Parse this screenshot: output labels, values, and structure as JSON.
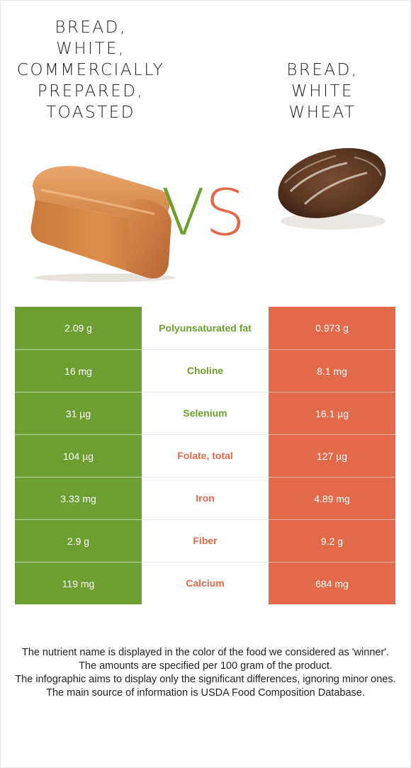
{
  "left_food": {
    "title": "Bread,\nwhite,\ncommercially\nprepared,\ntoasted",
    "image": "bread-loaf",
    "color": "#6e9e31"
  },
  "right_food": {
    "title": "Bread,\nwhite\nwheat",
    "image": "wheat-bread-loaf",
    "color": "#e2694a"
  },
  "vs": {
    "v": "V",
    "s": "S"
  },
  "rows": [
    {
      "left": "2.09 g",
      "nutrient": "Polyunsaturated fat",
      "right": "0.973 g",
      "winner": "left"
    },
    {
      "left": "16 mg",
      "nutrient": "Choline",
      "right": "8.1 mg",
      "winner": "left"
    },
    {
      "left": "31 µg",
      "nutrient": "Selenium",
      "right": "16.1 µg",
      "winner": "left"
    },
    {
      "left": "104 µg",
      "nutrient": "Folate, total",
      "right": "127 µg",
      "winner": "right"
    },
    {
      "left": "3.33 mg",
      "nutrient": "Iron",
      "right": "4.89 mg",
      "winner": "right"
    },
    {
      "left": "2.9 g",
      "nutrient": "Fiber",
      "right": "9.2 g",
      "winner": "right"
    },
    {
      "left": "119 mg",
      "nutrient": "Calcium",
      "right": "684 mg",
      "winner": "right"
    }
  ],
  "footer": [
    "The nutrient name is displayed in the color of the food we considered as 'winner'.",
    "The amounts are specified per 100 gram of the product.",
    "The infographic aims to display only the significant differences, ignoring minor ones.",
    "The main source of information is USDA Food Composition Database."
  ]
}
